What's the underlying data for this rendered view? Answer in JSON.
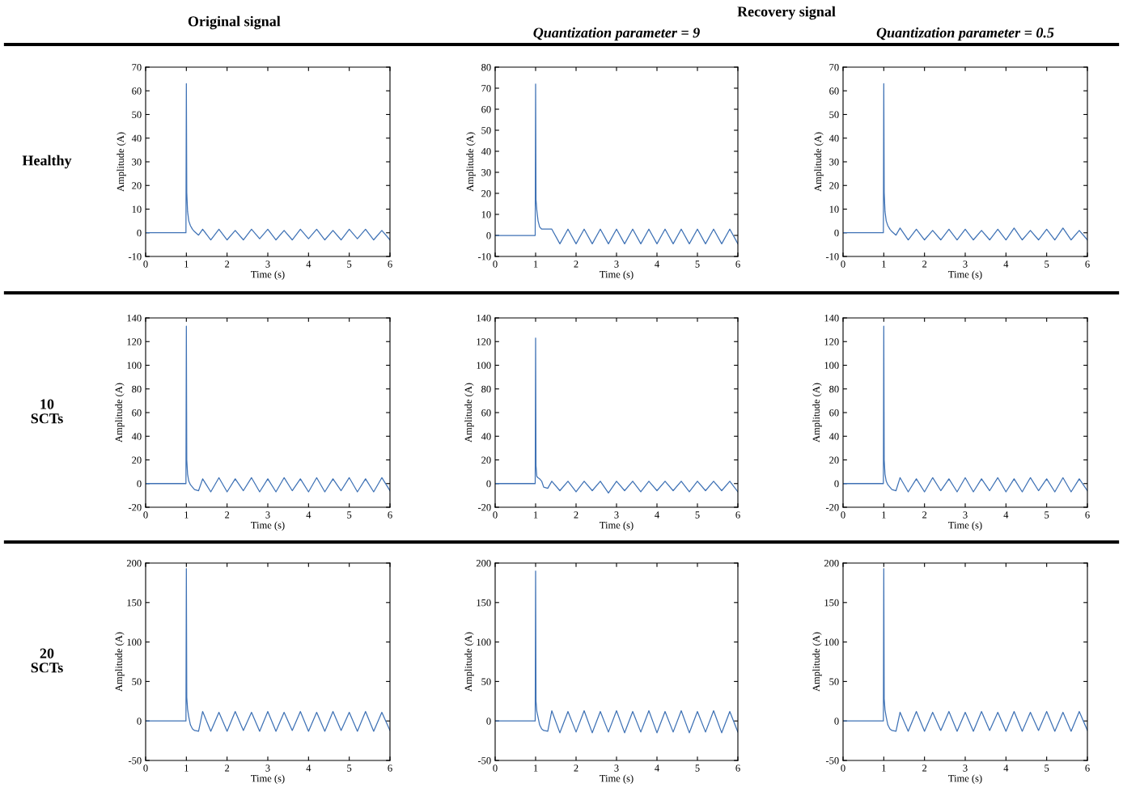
{
  "chart_data": [
    {
      "type": "line",
      "title": "Original signal",
      "annotations": [
        "Healthy"
      ],
      "xlabel": "Time (s)",
      "ylabel": "Amplitude (A)",
      "x": [
        0,
        0.99,
        1.0,
        1.01,
        1.03,
        1.06,
        1.1,
        1.15,
        1.2,
        1.3,
        1.4,
        1.6,
        1.8,
        2.0,
        2.2,
        2.4,
        2.6,
        2.8,
        3.0,
        3.2,
        3.4,
        3.6,
        3.8,
        4.0,
        4.2,
        4.4,
        4.6,
        4.8,
        5.0,
        5.2,
        5.4,
        5.6,
        5.8,
        6.0
      ],
      "series": [
        {
          "color": "#3f72b5",
          "values": [
            0,
            0,
            63,
            17,
            9,
            5,
            3,
            1.5,
            0.5,
            -1,
            1.5,
            -3,
            1.5,
            -3,
            1,
            -3,
            1.5,
            -2.5,
            1.5,
            -3,
            1,
            -3,
            1.5,
            -2.5,
            1.5,
            -3,
            1,
            -3,
            1.5,
            -2.5,
            1.5,
            -3,
            1,
            -3
          ]
        }
      ],
      "xlim": [
        0,
        6
      ],
      "xticks": [
        0,
        1,
        2,
        3,
        4,
        5,
        6
      ],
      "ylim": [
        -10,
        70
      ],
      "yticks": [
        -10,
        0,
        10,
        20,
        30,
        40,
        50,
        60,
        70
      ],
      "grid": false
    },
    {
      "type": "line",
      "subtitle": "Quantization parameter = 9",
      "annotations": [
        "Recovery signal"
      ],
      "xlabel": "Time (s)",
      "ylabel": "Amplitude (A)",
      "x": [
        0,
        0.99,
        1.0,
        1.01,
        1.03,
        1.06,
        1.1,
        1.15,
        1.2,
        1.3,
        1.4,
        1.6,
        1.8,
        2.0,
        2.2,
        2.4,
        2.6,
        2.8,
        3.0,
        3.2,
        3.4,
        3.6,
        3.8,
        4.0,
        4.2,
        4.4,
        4.6,
        4.8,
        5.0,
        5.2,
        5.4,
        5.6,
        5.8,
        6.0
      ],
      "series": [
        {
          "color": "#3f72b5",
          "values": [
            0,
            0,
            72,
            17,
            12,
            7,
            4,
            3,
            3,
            3,
            3,
            -4,
            3,
            -4,
            3,
            -4,
            3,
            -4,
            3,
            -4,
            3,
            -4,
            3,
            -4,
            3,
            -4,
            3,
            -4,
            3,
            -4,
            3,
            -4,
            3,
            -4
          ]
        }
      ],
      "xlim": [
        0,
        6
      ],
      "xticks": [
        0,
        1,
        2,
        3,
        4,
        5,
        6
      ],
      "ylim": [
        -10,
        80
      ],
      "yticks": [
        -10,
        0,
        10,
        20,
        30,
        40,
        50,
        60,
        70,
        80
      ],
      "grid": false
    },
    {
      "type": "line",
      "subtitle": "Quantization parameter = 0.5",
      "xlabel": "Time (s)",
      "ylabel": "Amplitude (A)",
      "x": [
        0,
        0.99,
        1.0,
        1.01,
        1.03,
        1.06,
        1.1,
        1.15,
        1.2,
        1.3,
        1.4,
        1.6,
        1.8,
        2.0,
        2.2,
        2.4,
        2.6,
        2.8,
        3.0,
        3.2,
        3.4,
        3.6,
        3.8,
        4.0,
        4.2,
        4.4,
        4.6,
        4.8,
        5.0,
        5.2,
        5.4,
        5.6,
        5.8,
        6.0
      ],
      "series": [
        {
          "color": "#3f72b5",
          "values": [
            0,
            0,
            63,
            17,
            9,
            5,
            3,
            1.5,
            0.5,
            -1,
            2,
            -3,
            1.5,
            -3,
            1,
            -3,
            1.5,
            -3,
            1.5,
            -3,
            1,
            -3,
            1.5,
            -3,
            2,
            -3,
            1,
            -3,
            1.5,
            -3,
            2,
            -3,
            1,
            -3
          ]
        }
      ],
      "xlim": [
        0,
        6
      ],
      "xticks": [
        0,
        1,
        2,
        3,
        4,
        5,
        6
      ],
      "ylim": [
        -10,
        70
      ],
      "yticks": [
        -10,
        0,
        10,
        20,
        30,
        40,
        50,
        60,
        70
      ],
      "grid": false
    },
    {
      "type": "line",
      "annotations": [
        "10\nSCTs"
      ],
      "xlabel": "Time (s)",
      "ylabel": "Amplitude (A)",
      "x": [
        0,
        0.99,
        1.0,
        1.01,
        1.03,
        1.06,
        1.1,
        1.15,
        1.2,
        1.3,
        1.4,
        1.6,
        1.8,
        2.0,
        2.2,
        2.4,
        2.6,
        2.8,
        3.0,
        3.2,
        3.4,
        3.6,
        3.8,
        4.0,
        4.2,
        4.4,
        4.6,
        4.8,
        5.0,
        5.2,
        5.4,
        5.6,
        5.8,
        6.0
      ],
      "series": [
        {
          "color": "#3f72b5",
          "values": [
            0,
            0,
            133,
            20,
            8,
            2,
            -1,
            -3,
            -5,
            -6,
            4,
            -7,
            5,
            -7,
            4,
            -6,
            5,
            -7,
            4,
            -7,
            5,
            -6,
            4,
            -7,
            5,
            -7,
            4,
            -6,
            5,
            -7,
            4,
            -7,
            5,
            -6
          ]
        }
      ],
      "xlim": [
        0,
        6
      ],
      "xticks": [
        0,
        1,
        2,
        3,
        4,
        5,
        6
      ],
      "ylim": [
        -20,
        140
      ],
      "yticks": [
        -20,
        0,
        20,
        40,
        60,
        80,
        100,
        120,
        140
      ],
      "grid": false
    },
    {
      "type": "line",
      "xlabel": "Time (s)",
      "ylabel": "Amplitude (A)",
      "x": [
        0,
        0.99,
        1.0,
        1.01,
        1.03,
        1.06,
        1.1,
        1.15,
        1.2,
        1.3,
        1.4,
        1.6,
        1.8,
        2.0,
        2.2,
        2.4,
        2.6,
        2.8,
        3.0,
        3.2,
        3.4,
        3.6,
        3.8,
        4.0,
        4.2,
        4.4,
        4.6,
        4.8,
        5.0,
        5.2,
        5.4,
        5.6,
        5.8,
        6.0
      ],
      "series": [
        {
          "color": "#3f72b5",
          "values": [
            0,
            0,
            123,
            15,
            6,
            5,
            4,
            2,
            -3,
            -4,
            2,
            -6,
            2,
            -7,
            2,
            -6,
            2,
            -8,
            2,
            -6,
            2,
            -7,
            2,
            -6,
            2,
            -6,
            2,
            -7,
            2,
            -6,
            2,
            -6,
            2,
            -7
          ]
        }
      ],
      "xlim": [
        0,
        6
      ],
      "xticks": [
        0,
        1,
        2,
        3,
        4,
        5,
        6
      ],
      "ylim": [
        -20,
        140
      ],
      "yticks": [
        -20,
        0,
        20,
        40,
        60,
        80,
        100,
        120,
        140
      ],
      "grid": false
    },
    {
      "type": "line",
      "xlabel": "Time (s)",
      "ylabel": "Amplitude (A)",
      "x": [
        0,
        0.99,
        1.0,
        1.01,
        1.03,
        1.06,
        1.1,
        1.15,
        1.2,
        1.3,
        1.4,
        1.6,
        1.8,
        2.0,
        2.2,
        2.4,
        2.6,
        2.8,
        3.0,
        3.2,
        3.4,
        3.6,
        3.8,
        4.0,
        4.2,
        4.4,
        4.6,
        4.8,
        5.0,
        5.2,
        5.4,
        5.6,
        5.8,
        6.0
      ],
      "series": [
        {
          "color": "#3f72b5",
          "values": [
            0,
            0,
            133,
            20,
            8,
            2,
            -1,
            -3,
            -5,
            -6,
            5,
            -7,
            4,
            -7,
            5,
            -6,
            4,
            -7,
            5,
            -7,
            4,
            -6,
            5,
            -7,
            4,
            -7,
            5,
            -6,
            4,
            -7,
            5,
            -7,
            4,
            -6
          ]
        }
      ],
      "xlim": [
        0,
        6
      ],
      "xticks": [
        0,
        1,
        2,
        3,
        4,
        5,
        6
      ],
      "ylim": [
        -20,
        140
      ],
      "yticks": [
        -20,
        0,
        20,
        40,
        60,
        80,
        100,
        120,
        140
      ],
      "grid": false
    },
    {
      "type": "line",
      "annotations": [
        "20\nSCTs"
      ],
      "xlabel": "Time (s)",
      "ylabel": "Amplitude (A)",
      "x": [
        0,
        0.99,
        1.0,
        1.01,
        1.03,
        1.06,
        1.1,
        1.15,
        1.2,
        1.3,
        1.4,
        1.6,
        1.8,
        2.0,
        2.2,
        2.4,
        2.6,
        2.8,
        3.0,
        3.2,
        3.4,
        3.6,
        3.8,
        4.0,
        4.2,
        4.4,
        4.6,
        4.8,
        5.0,
        5.2,
        5.4,
        5.6,
        5.8,
        6.0
      ],
      "series": [
        {
          "color": "#3f72b5",
          "values": [
            0,
            0,
            193,
            30,
            15,
            5,
            -5,
            -10,
            -12,
            -13,
            12,
            -13,
            11,
            -13,
            12,
            -12,
            11,
            -13,
            12,
            -13,
            11,
            -12,
            12,
            -13,
            11,
            -13,
            12,
            -12,
            11,
            -13,
            12,
            -13,
            11,
            -12
          ]
        }
      ],
      "xlim": [
        0,
        6
      ],
      "xticks": [
        0,
        1,
        2,
        3,
        4,
        5,
        6
      ],
      "ylim": [
        -50,
        200
      ],
      "yticks": [
        -50,
        0,
        50,
        100,
        150,
        200
      ],
      "grid": false
    },
    {
      "type": "line",
      "xlabel": "Time (s)",
      "ylabel": "Amplitude (A)",
      "x": [
        0,
        0.99,
        1.0,
        1.01,
        1.03,
        1.06,
        1.1,
        1.15,
        1.2,
        1.3,
        1.4,
        1.6,
        1.8,
        2.0,
        2.2,
        2.4,
        2.6,
        2.8,
        3.0,
        3.2,
        3.4,
        3.6,
        3.8,
        4.0,
        4.2,
        4.4,
        4.6,
        4.8,
        5.0,
        5.2,
        5.4,
        5.6,
        5.8,
        6.0
      ],
      "series": [
        {
          "color": "#3f72b5",
          "values": [
            0,
            0,
            190,
            25,
            12,
            5,
            -5,
            -10,
            -12,
            -13,
            13,
            -15,
            12,
            -14,
            13,
            -15,
            12,
            -14,
            13,
            -15,
            12,
            -14,
            13,
            -15,
            12,
            -14,
            13,
            -15,
            12,
            -14,
            13,
            -15,
            12,
            -14
          ]
        }
      ],
      "xlim": [
        0,
        6
      ],
      "xticks": [
        0,
        1,
        2,
        3,
        4,
        5,
        6
      ],
      "ylim": [
        -50,
        200
      ],
      "yticks": [
        -50,
        0,
        50,
        100,
        150,
        200
      ],
      "grid": false
    },
    {
      "type": "line",
      "xlabel": "Time (s)",
      "ylabel": "Amplitude (A)",
      "x": [
        0,
        0.99,
        1.0,
        1.01,
        1.03,
        1.06,
        1.1,
        1.15,
        1.2,
        1.3,
        1.4,
        1.6,
        1.8,
        2.0,
        2.2,
        2.4,
        2.6,
        2.8,
        3.0,
        3.2,
        3.4,
        3.6,
        3.8,
        4.0,
        4.2,
        4.4,
        4.6,
        4.8,
        5.0,
        5.2,
        5.4,
        5.6,
        5.8,
        6.0
      ],
      "series": [
        {
          "color": "#3f72b5",
          "values": [
            0,
            0,
            193,
            28,
            14,
            5,
            -5,
            -10,
            -12,
            -13,
            11,
            -13,
            12,
            -13,
            11,
            -12,
            12,
            -13,
            11,
            -13,
            12,
            -12,
            11,
            -13,
            12,
            -13,
            11,
            -12,
            12,
            -13,
            11,
            -13,
            12,
            -12
          ]
        }
      ],
      "xlim": [
        0,
        6
      ],
      "xticks": [
        0,
        1,
        2,
        3,
        4,
        5,
        6
      ],
      "ylim": [
        -50,
        200
      ],
      "yticks": [
        -50,
        0,
        50,
        100,
        150,
        200
      ],
      "grid": false
    }
  ]
}
